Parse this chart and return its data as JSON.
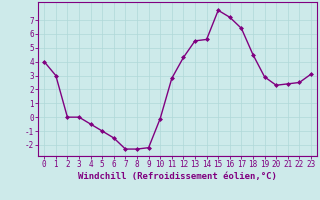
{
  "x": [
    0,
    1,
    2,
    3,
    4,
    5,
    6,
    7,
    8,
    9,
    10,
    11,
    12,
    13,
    14,
    15,
    16,
    17,
    18,
    19,
    20,
    21,
    22,
    23
  ],
  "y": [
    4.0,
    3.0,
    0.0,
    0.0,
    -0.5,
    -1.0,
    -1.5,
    -2.3,
    -2.3,
    -2.2,
    -0.1,
    2.8,
    4.3,
    5.5,
    5.6,
    7.7,
    7.2,
    6.4,
    4.5,
    2.9,
    2.3,
    2.4,
    2.5,
    3.1
  ],
  "line_color": "#800080",
  "marker": "D",
  "marker_size": 2.0,
  "line_width": 1.0,
  "bg_color": "#cdeaea",
  "grid_color": "#b0d8d8",
  "xlabel": "Windchill (Refroidissement éolien,°C)",
  "ylim": [
    -2.8,
    8.3
  ],
  "xlim": [
    -0.5,
    23.5
  ],
  "yticks": [
    -2,
    -1,
    0,
    1,
    2,
    3,
    4,
    5,
    6,
    7
  ],
  "xticks": [
    0,
    1,
    2,
    3,
    4,
    5,
    6,
    7,
    8,
    9,
    10,
    11,
    12,
    13,
    14,
    15,
    16,
    17,
    18,
    19,
    20,
    21,
    22,
    23
  ],
  "tick_fontsize": 5.5,
  "label_fontsize": 6.5,
  "axis_color": "#800080",
  "spine_color": "#800080",
  "grid_linewidth": 0.5
}
